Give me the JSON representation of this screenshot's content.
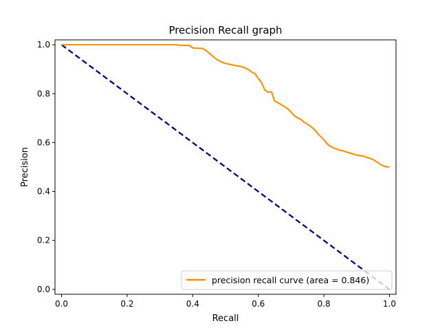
{
  "chart_data": {
    "type": "line",
    "title": "Precision Recall graph",
    "xlabel": "Recall",
    "ylabel": "Precision",
    "xlim": [
      -0.02,
      1.02
    ],
    "ylim": [
      -0.02,
      1.02
    ],
    "xticks": [
      0.0,
      0.2,
      0.4,
      0.6,
      0.8,
      1.0
    ],
    "yticks": [
      0.0,
      0.2,
      0.4,
      0.6,
      0.8,
      1.0
    ],
    "xtick_labels": [
      "0.0",
      "0.2",
      "0.4",
      "0.6",
      "0.8",
      "1.0"
    ],
    "ytick_labels": [
      "0.0",
      "0.2",
      "0.4",
      "0.6",
      "0.8",
      "1.0"
    ],
    "grid": false,
    "legend_position": "lower right",
    "series": [
      {
        "name": "precision recall curve (area = 0.846)",
        "color": "#ff8c00",
        "style": "solid",
        "x": [
          0.0,
          0.05,
          0.1,
          0.2,
          0.3,
          0.35,
          0.36,
          0.39,
          0.4,
          0.41,
          0.43,
          0.44,
          0.45,
          0.46,
          0.47,
          0.48,
          0.49,
          0.5,
          0.51,
          0.52,
          0.53,
          0.54,
          0.55,
          0.56,
          0.57,
          0.58,
          0.59,
          0.6,
          0.61,
          0.62,
          0.63,
          0.64,
          0.65,
          0.66,
          0.67,
          0.68,
          0.69,
          0.7,
          0.71,
          0.72,
          0.73,
          0.74,
          0.75,
          0.76,
          0.77,
          0.78,
          0.79,
          0.8,
          0.81,
          0.82,
          0.83,
          0.84,
          0.85,
          0.86,
          0.87,
          0.88,
          0.89,
          0.9,
          0.91,
          0.92,
          0.93,
          0.94,
          0.95,
          0.96,
          0.97,
          0.98,
          0.99,
          1.0
        ],
        "y": [
          1.0,
          1.0,
          1.0,
          1.0,
          1.0,
          1.0,
          0.998,
          0.997,
          0.987,
          0.986,
          0.985,
          0.977,
          0.966,
          0.955,
          0.943,
          0.935,
          0.928,
          0.924,
          0.921,
          0.918,
          0.915,
          0.913,
          0.91,
          0.905,
          0.898,
          0.888,
          0.882,
          0.862,
          0.845,
          0.815,
          0.806,
          0.808,
          0.77,
          0.763,
          0.755,
          0.747,
          0.738,
          0.725,
          0.71,
          0.701,
          0.695,
          0.683,
          0.675,
          0.666,
          0.655,
          0.639,
          0.625,
          0.612,
          0.595,
          0.585,
          0.578,
          0.573,
          0.568,
          0.566,
          0.561,
          0.557,
          0.553,
          0.549,
          0.547,
          0.545,
          0.54,
          0.536,
          0.531,
          0.522,
          0.513,
          0.506,
          0.501,
          0.5
        ]
      },
      {
        "name": "",
        "color": "#000080",
        "style": "dashed",
        "x": [
          0.0,
          1.0
        ],
        "y": [
          1.0,
          0.0
        ]
      }
    ]
  }
}
